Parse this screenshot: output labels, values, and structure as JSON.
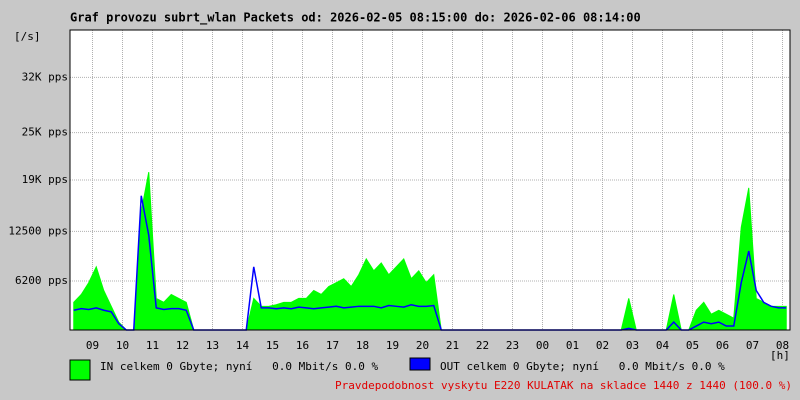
{
  "chart_data": {
    "type": "line",
    "title": "Graf provozu subrt_wlan Packets od: 2026-02-05 08:15:00 do: 2026-02-06 08:14:00",
    "y_label": "[/s]",
    "x_label": "[h]",
    "ylim": [
      0,
      38000
    ],
    "yticks": [
      {
        "value": 6200,
        "label": "6200 pps"
      },
      {
        "value": 12500,
        "label": "12500 pps"
      },
      {
        "value": 19000,
        "label": "19K pps"
      },
      {
        "value": 25000,
        "label": "25K pps"
      },
      {
        "value": 32000,
        "label": "32K pps"
      }
    ],
    "xticks": [
      "09",
      "10",
      "11",
      "12",
      "13",
      "14",
      "15",
      "16",
      "17",
      "18",
      "19",
      "20",
      "21",
      "22",
      "23",
      "00",
      "01",
      "02",
      "03",
      "04",
      "05",
      "06",
      "07",
      "08"
    ],
    "grid": true,
    "series": [
      {
        "name": "IN celkem 0 Gbyte; nyní   0.0 Mbit/s 0.0 %",
        "color": "#00ff00",
        "fill": true,
        "values": [
          3500,
          4500,
          6000,
          8000,
          5000,
          3000,
          1000,
          0,
          0,
          15000,
          20000,
          4000,
          3500,
          4500,
          4000,
          3500,
          0,
          0,
          0,
          0,
          0,
          0,
          0,
          0,
          4000,
          3000,
          3000,
          3200,
          3500,
          3500,
          4000,
          4000,
          5000,
          4500,
          5500,
          6000,
          6500,
          5500,
          7000,
          9000,
          7500,
          8500,
          7000,
          8000,
          9000,
          6500,
          7500,
          6000,
          7000,
          0,
          0,
          0,
          0,
          0,
          0,
          0,
          0,
          0,
          0,
          0,
          0,
          0,
          0,
          0,
          0,
          0,
          0,
          0,
          0,
          0,
          0,
          0,
          0,
          0,
          4000,
          0,
          0,
          0,
          0,
          0,
          4500,
          0,
          0,
          2500,
          3500,
          2000,
          2500,
          2000,
          1500,
          13000,
          18000,
          4000,
          3500,
          3000,
          3000,
          3000
        ]
      },
      {
        "name": "OUT celkem 0 Gbyte; nyní   0.0 Mbit/s 0.0 %",
        "color": "#0000ff",
        "fill": false,
        "values": [
          2500,
          2700,
          2600,
          2800,
          2500,
          2300,
          800,
          0,
          0,
          17000,
          12000,
          2800,
          2600,
          2700,
          2700,
          2500,
          0,
          0,
          0,
          0,
          0,
          0,
          0,
          0,
          8000,
          2800,
          2800,
          2700,
          2800,
          2700,
          2900,
          2800,
          2700,
          2800,
          2900,
          3000,
          2800,
          2900,
          3000,
          3000,
          3000,
          2800,
          3100,
          3000,
          2900,
          3200,
          3000,
          3000,
          3100,
          0,
          0,
          0,
          0,
          0,
          0,
          0,
          0,
          0,
          0,
          0,
          0,
          0,
          0,
          0,
          0,
          0,
          0,
          0,
          0,
          0,
          0,
          0,
          0,
          0,
          200,
          0,
          0,
          0,
          0,
          0,
          1000,
          0,
          0,
          500,
          1000,
          800,
          1000,
          500,
          500,
          6000,
          10000,
          5000,
          3500,
          3000,
          2800,
          2800
        ]
      }
    ],
    "footer": "Pravdepodobnost vyskytu E220 KULATAK na skladce 1440 z 1440 (100.0 %)"
  }
}
